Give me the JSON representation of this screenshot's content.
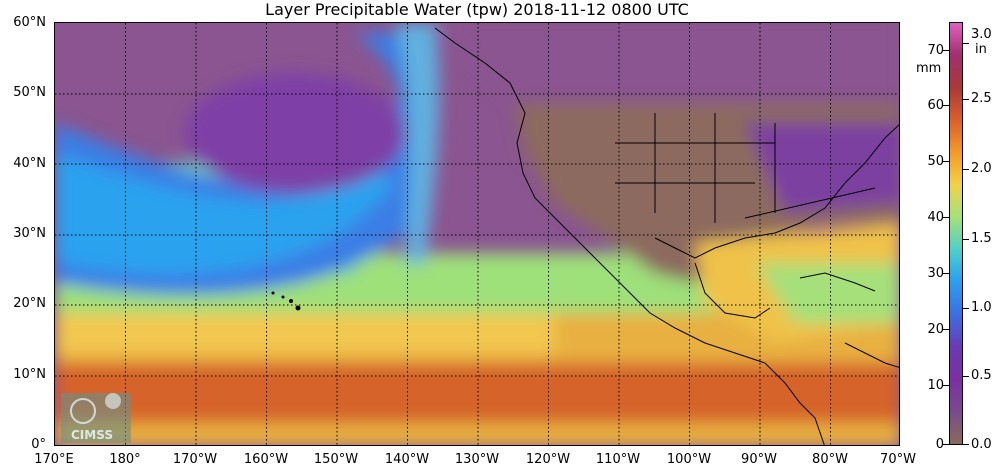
{
  "title": "Layer Precipitable Water (tpw)  2018-11-12 0800 UTC",
  "latitude_labels": [
    "60°N",
    "50°N",
    "40°N",
    "30°N",
    "20°N",
    "10°N",
    "0°"
  ],
  "longitude_labels": [
    "170°E",
    "180°",
    "170°W",
    "160°W",
    "150°W",
    "140°W",
    "130°W",
    "120°W",
    "110°W",
    "100°W",
    "90°W",
    "80°W",
    "70°W"
  ],
  "colorbar": {
    "mm_ticks": [
      "70",
      "60",
      "50",
      "40",
      "30",
      "20",
      "10",
      "0"
    ],
    "mm_unit": "mm",
    "in_ticks": [
      "3.0",
      "2.5",
      "2.0",
      "1.5",
      "1.0",
      "0.5",
      "0.0"
    ],
    "in_unit": "in",
    "colors": [
      "#8b6a5a",
      "#7a4a8c",
      "#7b2fa0",
      "#6a3ab4",
      "#3c6fe0",
      "#2a9ef0",
      "#4fd0c8",
      "#a6e07a",
      "#f0d24a",
      "#f39a2a",
      "#d9602a",
      "#a83a3a",
      "#a0306e",
      "#e060c0"
    ]
  },
  "logo_text": "CIMSS"
}
